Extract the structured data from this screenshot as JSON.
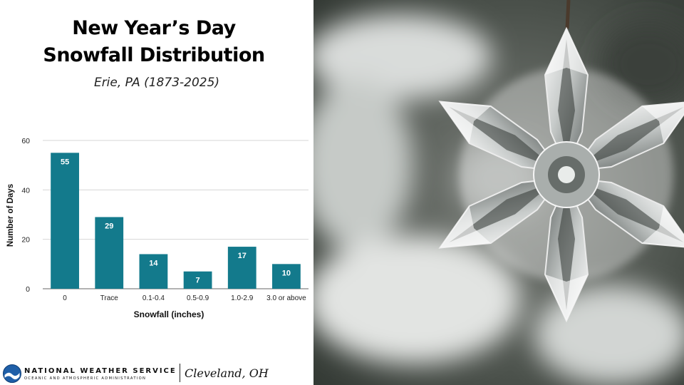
{
  "header": {
    "title_line1": "New Year’s Day",
    "title_line2": "Snowfall Distribution",
    "subtitle": "Erie, PA (1873-2025)"
  },
  "chart_data": {
    "type": "bar",
    "categories": [
      "0",
      "Trace",
      "0.1-0.4",
      "0.5-0.9",
      "1.0-2.9",
      "3.0 or above"
    ],
    "values": [
      55,
      29,
      14,
      7,
      17,
      10
    ],
    "data_labels": [
      "55",
      "29",
      "14",
      "7",
      "17",
      "10"
    ],
    "xlabel": "Snowfall (inches)",
    "ylabel": "Number of Days",
    "ylim": [
      0,
      60
    ],
    "yticks": [
      0,
      20,
      40,
      60
    ],
    "grid": true,
    "bar_color": "#137a8c"
  },
  "footer": {
    "org_name": "NATIONAL WEATHER SERVICE",
    "org_sub": "OCEANIC AND ATMOSPHERIC ADMINISTRATION",
    "office": "Cleveland, OH"
  },
  "photo": {
    "icon": "snowflake-ornament-icon"
  }
}
